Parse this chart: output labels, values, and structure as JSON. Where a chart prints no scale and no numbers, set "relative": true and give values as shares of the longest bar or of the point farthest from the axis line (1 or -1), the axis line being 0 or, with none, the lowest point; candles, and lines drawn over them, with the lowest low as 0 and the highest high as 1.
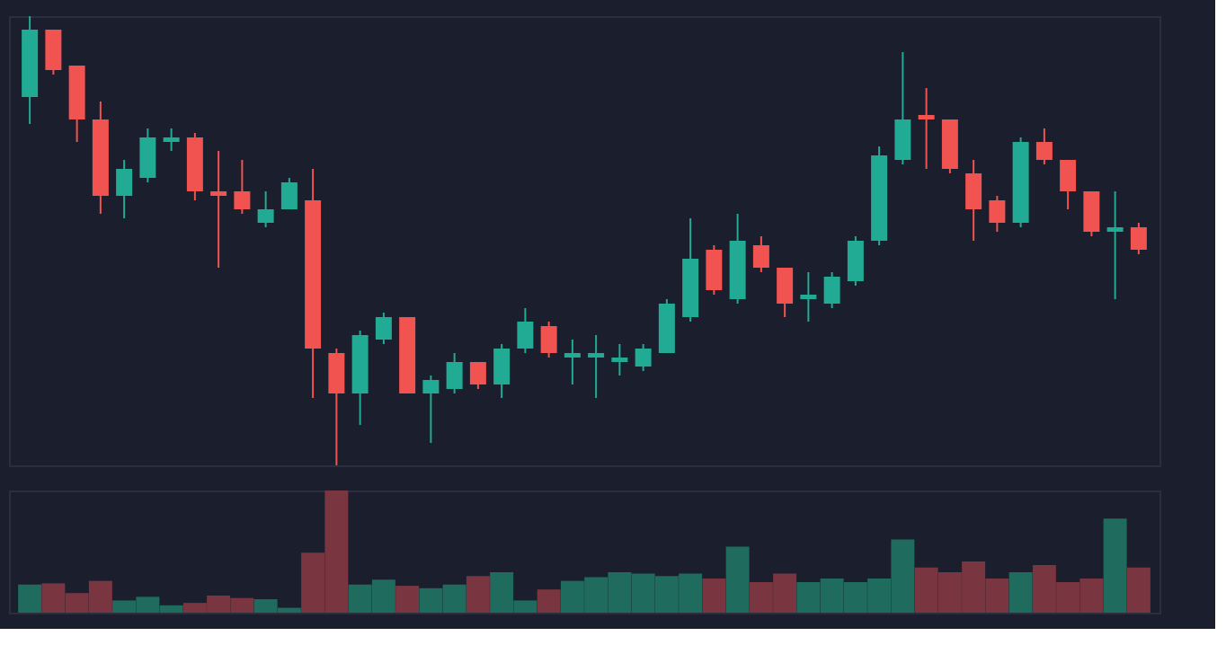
{
  "chart_data": [
    {
      "type": "candlestick",
      "relative": true,
      "categories": [
        null,
        null,
        null,
        null,
        null,
        null,
        null,
        null,
        null,
        null,
        null,
        null,
        null,
        null,
        null,
        null,
        null,
        null,
        null,
        null,
        null,
        null,
        null,
        null,
        null,
        null,
        null,
        null,
        null,
        null,
        null,
        null,
        null,
        null,
        null,
        null,
        null,
        null,
        null,
        null,
        null,
        null,
        null,
        null,
        null,
        null,
        null,
        null
      ],
      "ohlc": [
        [
          0.82,
          1.0,
          0.76,
          0.97
        ],
        [
          0.97,
          0.97,
          0.87,
          0.88
        ],
        [
          0.89,
          0.89,
          0.72,
          0.77
        ],
        [
          0.77,
          0.81,
          0.56,
          0.6
        ],
        [
          0.6,
          0.68,
          0.55,
          0.66
        ],
        [
          0.64,
          0.75,
          0.63,
          0.73
        ],
        [
          0.72,
          0.75,
          0.7,
          0.73
        ],
        [
          0.73,
          0.74,
          0.59,
          0.61
        ],
        [
          0.61,
          0.7,
          0.44,
          0.6
        ],
        [
          0.61,
          0.68,
          0.56,
          0.57
        ],
        [
          0.54,
          0.61,
          0.53,
          0.57
        ],
        [
          0.57,
          0.64,
          0.57,
          0.63
        ],
        [
          0.59,
          0.66,
          0.15,
          0.26
        ],
        [
          0.25,
          0.26,
          0.0,
          0.16
        ],
        [
          0.16,
          0.3,
          0.09,
          0.29
        ],
        [
          0.28,
          0.34,
          0.27,
          0.33
        ],
        [
          0.33,
          0.33,
          0.16,
          0.16
        ],
        [
          0.16,
          0.2,
          0.05,
          0.19
        ],
        [
          0.17,
          0.25,
          0.16,
          0.23
        ],
        [
          0.23,
          0.23,
          0.17,
          0.18
        ],
        [
          0.18,
          0.27,
          0.15,
          0.26
        ],
        [
          0.26,
          0.35,
          0.25,
          0.32
        ],
        [
          0.31,
          0.32,
          0.24,
          0.25
        ],
        [
          0.24,
          0.28,
          0.18,
          0.25
        ],
        [
          0.24,
          0.29,
          0.15,
          0.25
        ],
        [
          0.23,
          0.27,
          0.2,
          0.24
        ],
        [
          0.22,
          0.27,
          0.21,
          0.26
        ],
        [
          0.25,
          0.37,
          0.25,
          0.36
        ],
        [
          0.33,
          0.55,
          0.32,
          0.46
        ],
        [
          0.48,
          0.49,
          0.38,
          0.39
        ],
        [
          0.37,
          0.56,
          0.36,
          0.5
        ],
        [
          0.49,
          0.51,
          0.43,
          0.44
        ],
        [
          0.44,
          0.44,
          0.33,
          0.36
        ],
        [
          0.37,
          0.43,
          0.32,
          0.38
        ],
        [
          0.36,
          0.43,
          0.35,
          0.42
        ],
        [
          0.41,
          0.51,
          0.4,
          0.5
        ],
        [
          0.5,
          0.71,
          0.49,
          0.69
        ],
        [
          0.68,
          0.92,
          0.67,
          0.77
        ],
        [
          0.78,
          0.84,
          0.66,
          0.77
        ],
        [
          0.77,
          0.77,
          0.65,
          0.66
        ],
        [
          0.65,
          0.68,
          0.5,
          0.57
        ],
        [
          0.59,
          0.6,
          0.52,
          0.54
        ],
        [
          0.54,
          0.73,
          0.53,
          0.72
        ],
        [
          0.72,
          0.75,
          0.67,
          0.68
        ],
        [
          0.68,
          0.68,
          0.57,
          0.61
        ],
        [
          0.61,
          0.61,
          0.51,
          0.52
        ],
        [
          0.52,
          0.61,
          0.37,
          0.53
        ],
        [
          0.53,
          0.54,
          0.47,
          0.48
        ]
      ],
      "colors": [
        "#22ab94",
        "#f05350",
        "#f05350",
        "#f05350",
        "#22ab94",
        "#22ab94",
        "#22ab94",
        "#f05350",
        "#f05350",
        "#f05350",
        "#22ab94",
        "#22ab94",
        "#f05350",
        "#f05350",
        "#22ab94",
        "#22ab94",
        "#f05350",
        "#22ab94",
        "#22ab94",
        "#f05350",
        "#22ab94",
        "#22ab94",
        "#f05350",
        "#22ab94",
        "#22ab94",
        "#22ab94",
        "#22ab94",
        "#22ab94",
        "#22ab94",
        "#f05350",
        "#22ab94",
        "#f05350",
        "#f05350",
        "#22ab94",
        "#22ab94",
        "#22ab94",
        "#22ab94",
        "#22ab94",
        "#f05350",
        "#f05350",
        "#f05350",
        "#f05350",
        "#22ab94",
        "#f05350",
        "#f05350",
        "#f05350",
        "#22ab94",
        "#f05350"
      ]
    },
    {
      "type": "bar",
      "relative": true,
      "categories": [
        null,
        null,
        null,
        null,
        null,
        null,
        null,
        null,
        null,
        null,
        null,
        null,
        null,
        null,
        null,
        null,
        null,
        null,
        null,
        null,
        null,
        null,
        null,
        null,
        null,
        null,
        null,
        null,
        null,
        null,
        null,
        null,
        null,
        null,
        null,
        null,
        null,
        null,
        null,
        null,
        null,
        null,
        null,
        null,
        null,
        null,
        null,
        null
      ],
      "values": [
        0.23,
        0.24,
        0.16,
        0.26,
        0.1,
        0.13,
        0.06,
        0.08,
        0.14,
        0.12,
        0.11,
        0.04,
        0.49,
        1.0,
        0.23,
        0.27,
        0.22,
        0.2,
        0.23,
        0.3,
        0.33,
        0.1,
        0.19,
        0.26,
        0.29,
        0.33,
        0.32,
        0.3,
        0.32,
        0.28,
        0.54,
        0.25,
        0.32,
        0.25,
        0.28,
        0.25,
        0.28,
        0.6,
        0.37,
        0.33,
        0.42,
        0.28,
        0.33,
        0.39,
        0.25,
        0.28,
        0.77,
        0.37
      ],
      "colors": [
        "#1f6b5e",
        "#7a3640",
        "#7a3640",
        "#7a3640",
        "#1f6b5e",
        "#1f6b5e",
        "#1f6b5e",
        "#7a3640",
        "#7a3640",
        "#7a3640",
        "#1f6b5e",
        "#1f6b5e",
        "#7a3640",
        "#7a3640",
        "#1f6b5e",
        "#1f6b5e",
        "#7a3640",
        "#1f6b5e",
        "#1f6b5e",
        "#7a3640",
        "#1f6b5e",
        "#1f6b5e",
        "#7a3640",
        "#1f6b5e",
        "#1f6b5e",
        "#1f6b5e",
        "#1f6b5e",
        "#1f6b5e",
        "#1f6b5e",
        "#7a3640",
        "#1f6b5e",
        "#7a3640",
        "#7a3640",
        "#1f6b5e",
        "#1f6b5e",
        "#1f6b5e",
        "#1f6b5e",
        "#1f6b5e",
        "#7a3640",
        "#7a3640",
        "#7a3640",
        "#7a3640",
        "#1f6b5e",
        "#7a3640",
        "#7a3640",
        "#7a3640",
        "#1f6b5e",
        "#7a3640"
      ]
    }
  ]
}
